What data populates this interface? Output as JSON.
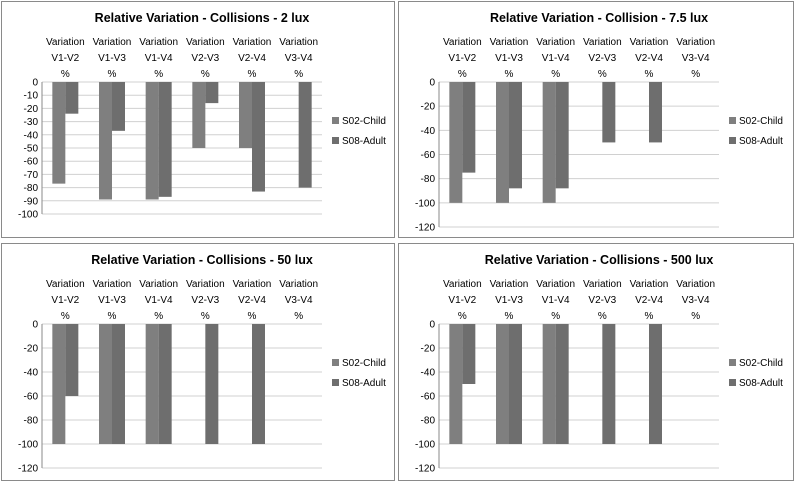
{
  "colors": {
    "series_child": "#7f7f7f",
    "series_adult": "#6e6e6e",
    "border": "#8a8a8a"
  },
  "chart_data": [
    {
      "type": "bar",
      "title": "Relative Variation - Collisions - 2 lux",
      "categories": [
        [
          "Variation",
          "V1-V2",
          "%"
        ],
        [
          "Variation",
          "V1-V3",
          "%"
        ],
        [
          "Variation",
          "V1-V4",
          "%"
        ],
        [
          "Variation",
          "V2-V3",
          "%"
        ],
        [
          "Variation",
          "V2-V4",
          "%"
        ],
        [
          "Variation",
          "V3-V4",
          "%"
        ]
      ],
      "ylim": [
        -100,
        0
      ],
      "ytick_step": 10,
      "series": [
        {
          "name": "S02-Child",
          "values": [
            -77,
            -89,
            -89,
            -50,
            -50,
            0
          ]
        },
        {
          "name": "S08-Adult",
          "values": [
            -24,
            -37,
            -87,
            -16,
            -83,
            -80
          ]
        }
      ],
      "legend": "right"
    },
    {
      "type": "bar",
      "title": "Relative Variation - Collision - 7.5 lux",
      "categories": [
        [
          "Variation",
          "V1-V2",
          "%"
        ],
        [
          "Variation",
          "V1-V3",
          "%"
        ],
        [
          "Variation",
          "V1-V4",
          "%"
        ],
        [
          "Variation",
          "V2-V3",
          "%"
        ],
        [
          "Variation",
          "V2-V4",
          "%"
        ],
        [
          "Variation",
          "V3-V4",
          "%"
        ]
      ],
      "ylim": [
        -120,
        0
      ],
      "ytick_step": 20,
      "series": [
        {
          "name": "S02-Child",
          "values": [
            -100,
            -100,
            -100,
            0,
            0,
            0
          ]
        },
        {
          "name": "S08-Adult",
          "values": [
            -75,
            -88,
            -88,
            -50,
            -50,
            0
          ]
        }
      ],
      "legend": "right"
    },
    {
      "type": "bar",
      "title": "Relative Variation - Collisions - 50 lux",
      "categories": [
        [
          "Variation",
          "V1-V2",
          "%"
        ],
        [
          "Variation",
          "V1-V3",
          "%"
        ],
        [
          "Variation",
          "V1-V4",
          "%"
        ],
        [
          "Variation",
          "V2-V3",
          "%"
        ],
        [
          "Variation",
          "V2-V4",
          "%"
        ],
        [
          "Variation",
          "V3-V4",
          "%"
        ]
      ],
      "ylim": [
        -120,
        0
      ],
      "ytick_step": 20,
      "series": [
        {
          "name": "S02-Child",
          "values": [
            -100,
            -100,
            -100,
            0,
            0,
            0
          ]
        },
        {
          "name": "S08-Adult",
          "values": [
            -60,
            -100,
            -100,
            -100,
            -100,
            0
          ]
        }
      ],
      "legend": "right"
    },
    {
      "type": "bar",
      "title": "Relative Variation - Collisions - 500 lux",
      "categories": [
        [
          "Variation",
          "V1-V2",
          "%"
        ],
        [
          "Variation",
          "V1-V3",
          "%"
        ],
        [
          "Variation",
          "V1-V4",
          "%"
        ],
        [
          "Variation",
          "V2-V3",
          "%"
        ],
        [
          "Variation",
          "V2-V4",
          "%"
        ],
        [
          "Variation",
          "V3-V4",
          "%"
        ]
      ],
      "ylim": [
        -120,
        0
      ],
      "ytick_step": 20,
      "series": [
        {
          "name": "S02-Child",
          "values": [
            -100,
            -100,
            -100,
            0,
            0,
            0
          ]
        },
        {
          "name": "S08-Adult",
          "values": [
            -50,
            -100,
            -100,
            -100,
            -100,
            0
          ]
        }
      ],
      "legend": "right"
    }
  ]
}
